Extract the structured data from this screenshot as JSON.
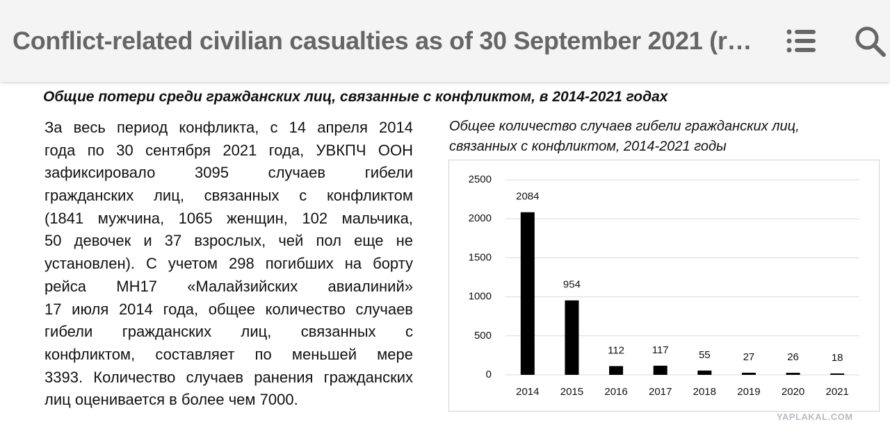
{
  "header": {
    "title": "Conflict-related civilian casualties as of 30 September 2021 (r…"
  },
  "article": {
    "heading": "Общие потери среди гражданских лиц, связанные с конфликтом, в 2014-2021 годах",
    "paragraph": [
      "За весь период конфликта, с 14 апреля 2014",
      "года по 30 сентября 2021 года, УВКПЧ ООН",
      "зафиксировало 3095 случаев гибели",
      "гражданских лиц, связанных с конфликтом",
      "(1841 мужчина, 1065 женщин, 102 мальчика,",
      "50 девочек и 37 взрослых, чей пол еще не",
      "установлен). С учетом 298 погибших на борту",
      "рейса МН17 «Малайзийских авиалиний»",
      "17 июля 2014 года, общее количество случаев",
      "гибели гражданских лиц, связанных с",
      "конфликтом, составляет по меньшей мере",
      "3393. Количество случаев ранения гражданских",
      "лиц оценивается в более чем 7000."
    ]
  },
  "chart_data": {
    "type": "bar",
    "title": [
      "Общее количество случаев гибели гражданских лиц,",
      "связанных с конфликтом, 2014-2021 годы"
    ],
    "categories": [
      "2014",
      "2015",
      "2016",
      "2017",
      "2018",
      "2019",
      "2020",
      "2021"
    ],
    "values": [
      2084,
      954,
      112,
      117,
      55,
      27,
      26,
      18
    ],
    "color": "#000000",
    "ylim": [
      0,
      2500
    ],
    "yticks": [
      0,
      500,
      1000,
      1500,
      2000,
      2500
    ],
    "grid": true
  },
  "watermark": "YAPLAKAL.COM"
}
